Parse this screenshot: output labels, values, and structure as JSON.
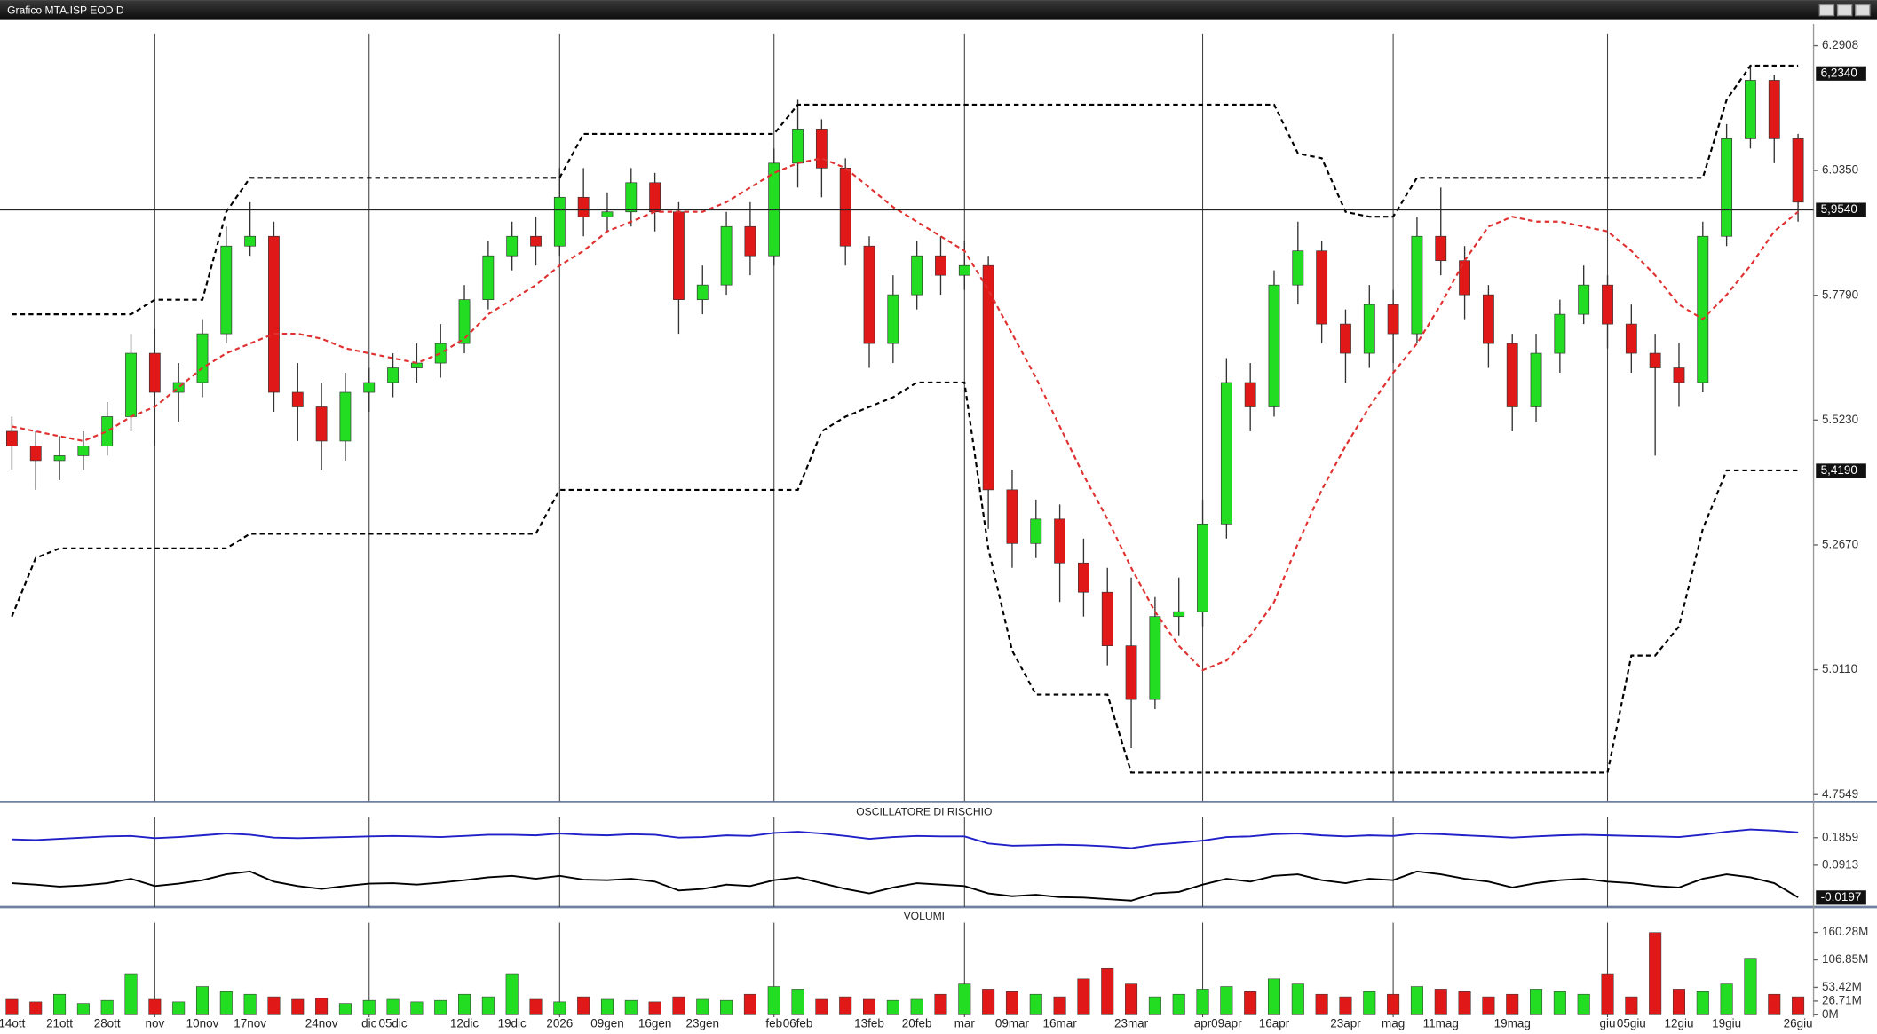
{
  "window": {
    "title": "Grafico MTA.ISP EOD D"
  },
  "chart_data": [
    {
      "type": "candlestick",
      "categories": [
        "14ott",
        null,
        "21ott",
        null,
        "28ott",
        null,
        "nov",
        null,
        "10nov",
        null,
        "17nov",
        null,
        null,
        "24nov",
        null,
        "dic",
        "05dic",
        null,
        null,
        "12dic",
        null,
        "19dic",
        null,
        "2026",
        null,
        "09gen",
        null,
        "16gen",
        null,
        "23gen",
        null,
        null,
        "feb",
        "06feb",
        null,
        null,
        "13feb",
        null,
        "20feb",
        null,
        "mar",
        null,
        "09mar",
        null,
        "16mar",
        null,
        null,
        "23mar",
        null,
        null,
        "apr",
        "09apr",
        null,
        "16apr",
        null,
        null,
        "23apr",
        null,
        "mag",
        null,
        "11mag",
        null,
        null,
        "19mag",
        null,
        null,
        null,
        "giu",
        "05giu",
        null,
        "12giu",
        null,
        "19giu",
        null,
        null,
        "26giu"
      ],
      "open": [
        5.5,
        5.47,
        5.44,
        5.45,
        5.47,
        5.53,
        5.66,
        5.58,
        5.6,
        5.7,
        5.88,
        5.9,
        5.58,
        5.55,
        5.48,
        5.58,
        5.6,
        5.63,
        5.64,
        5.68,
        5.77,
        5.86,
        5.9,
        5.88,
        5.98,
        5.94,
        5.95,
        6.01,
        5.95,
        5.77,
        5.8,
        5.92,
        5.86,
        6.05,
        6.12,
        6.04,
        5.88,
        5.68,
        5.78,
        5.86,
        5.82,
        5.84,
        5.38,
        5.27,
        5.32,
        5.23,
        5.17,
        5.06,
        4.95,
        5.12,
        5.13,
        5.31,
        5.6,
        5.55,
        5.8,
        5.87,
        5.72,
        5.66,
        5.76,
        5.7,
        5.9,
        5.85,
        5.78,
        5.68,
        5.55,
        5.66,
        5.74,
        5.8,
        5.72,
        5.66,
        5.63,
        5.6,
        5.9,
        6.1,
        6.22,
        6.1
      ],
      "high": [
        5.53,
        5.5,
        5.49,
        5.5,
        5.56,
        5.7,
        5.71,
        5.64,
        5.73,
        5.92,
        5.97,
        5.93,
        5.64,
        5.6,
        5.62,
        5.63,
        5.66,
        5.68,
        5.72,
        5.8,
        5.89,
        5.93,
        5.94,
        6.04,
        6.04,
        5.99,
        6.04,
        6.03,
        5.97,
        5.84,
        5.95,
        5.97,
        6.08,
        6.18,
        6.14,
        6.06,
        5.9,
        5.82,
        5.89,
        5.9,
        5.89,
        5.86,
        5.42,
        5.36,
        5.35,
        5.28,
        5.22,
        5.2,
        5.16,
        5.2,
        5.36,
        5.65,
        5.64,
        5.83,
        5.93,
        5.89,
        5.75,
        5.8,
        5.79,
        5.94,
        6.0,
        5.88,
        5.8,
        5.7,
        5.7,
        5.77,
        5.84,
        5.82,
        5.76,
        5.7,
        5.68,
        5.93,
        6.13,
        6.25,
        6.23,
        6.11
      ],
      "low": [
        5.42,
        5.38,
        5.4,
        5.42,
        5.45,
        5.5,
        5.47,
        5.52,
        5.57,
        5.68,
        5.86,
        5.54,
        5.48,
        5.42,
        5.44,
        5.54,
        5.57,
        5.6,
        5.61,
        5.66,
        5.75,
        5.83,
        5.84,
        5.86,
        5.9,
        5.91,
        5.92,
        5.91,
        5.7,
        5.74,
        5.78,
        5.82,
        5.84,
        6.0,
        5.98,
        5.84,
        5.63,
        5.64,
        5.75,
        5.78,
        5.79,
        5.3,
        5.22,
        5.24,
        5.15,
        5.12,
        5.02,
        4.85,
        4.93,
        5.08,
        5.1,
        5.28,
        5.5,
        5.53,
        5.76,
        5.68,
        5.6,
        5.63,
        5.64,
        5.68,
        5.82,
        5.73,
        5.63,
        5.5,
        5.52,
        5.62,
        5.72,
        5.67,
        5.62,
        5.45,
        5.55,
        5.58,
        5.88,
        6.08,
        6.05,
        5.93
      ],
      "close": [
        5.47,
        5.44,
        5.45,
        5.47,
        5.53,
        5.66,
        5.58,
        5.6,
        5.7,
        5.88,
        5.9,
        5.58,
        5.55,
        5.48,
        5.58,
        5.6,
        5.63,
        5.64,
        5.68,
        5.77,
        5.86,
        5.9,
        5.88,
        5.98,
        5.94,
        5.95,
        6.01,
        5.95,
        5.77,
        5.8,
        5.92,
        5.86,
        6.05,
        6.12,
        6.04,
        5.88,
        5.68,
        5.78,
        5.86,
        5.82,
        5.84,
        5.38,
        5.27,
        5.32,
        5.23,
        5.17,
        5.06,
        4.95,
        5.12,
        5.13,
        5.31,
        5.6,
        5.55,
        5.8,
        5.87,
        5.72,
        5.66,
        5.76,
        5.7,
        5.9,
        5.85,
        5.78,
        5.68,
        5.55,
        5.66,
        5.74,
        5.8,
        5.72,
        5.66,
        5.63,
        5.6,
        5.9,
        6.1,
        6.22,
        6.1,
        5.97
      ],
      "up_color": "#22dd22",
      "down_color": "#e01818",
      "overlays": [
        {
          "color": "#e03030",
          "dash": true,
          "values": [
            5.51,
            5.5,
            5.49,
            5.48,
            5.5,
            5.53,
            5.55,
            5.59,
            5.63,
            5.66,
            5.68,
            5.7,
            5.7,
            5.69,
            5.67,
            5.66,
            5.65,
            5.64,
            5.66,
            5.69,
            5.74,
            5.77,
            5.8,
            5.84,
            5.87,
            5.91,
            5.93,
            5.95,
            5.95,
            5.95,
            5.97,
            6.0,
            6.03,
            6.05,
            6.06,
            6.04,
            6.0,
            5.96,
            5.93,
            5.9,
            5.87,
            5.79,
            5.7,
            5.61,
            5.51,
            5.41,
            5.32,
            5.22,
            5.13,
            5.06,
            5.01,
            5.03,
            5.08,
            5.15,
            5.27,
            5.38,
            5.47,
            5.55,
            5.62,
            5.68,
            5.76,
            5.85,
            5.92,
            5.94,
            5.93,
            5.93,
            5.92,
            5.91,
            5.87,
            5.82,
            5.76,
            5.73,
            5.78,
            5.84,
            5.91,
            5.95
          ]
        },
        {
          "color": "#000000",
          "dash": true,
          "values": [
            5.74,
            5.74,
            5.74,
            5.74,
            5.74,
            5.74,
            5.77,
            5.77,
            5.77,
            5.95,
            6.02,
            6.02,
            6.02,
            6.02,
            6.02,
            6.02,
            6.02,
            6.02,
            6.02,
            6.02,
            6.02,
            6.02,
            6.02,
            6.02,
            6.11,
            6.11,
            6.11,
            6.11,
            6.11,
            6.11,
            6.11,
            6.11,
            6.11,
            6.17,
            6.17,
            6.17,
            6.17,
            6.17,
            6.17,
            6.17,
            6.17,
            6.17,
            6.17,
            6.17,
            6.17,
            6.17,
            6.17,
            6.17,
            6.17,
            6.17,
            6.17,
            6.17,
            6.17,
            6.17,
            6.07,
            6.06,
            5.95,
            5.94,
            5.94,
            6.02,
            6.02,
            6.02,
            6.02,
            6.02,
            6.02,
            6.02,
            6.02,
            6.02,
            6.02,
            6.02,
            6.02,
            6.02,
            6.18,
            6.25,
            6.25,
            6.25
          ]
        },
        {
          "color": "#000000",
          "dash": true,
          "values": [
            5.12,
            5.24,
            5.26,
            5.26,
            5.26,
            5.26,
            5.26,
            5.26,
            5.26,
            5.26,
            5.29,
            5.29,
            5.29,
            5.29,
            5.29,
            5.29,
            5.29,
            5.29,
            5.29,
            5.29,
            5.29,
            5.29,
            5.29,
            5.38,
            5.38,
            5.38,
            5.38,
            5.38,
            5.38,
            5.38,
            5.38,
            5.38,
            5.38,
            5.38,
            5.5,
            5.53,
            5.55,
            5.57,
            5.6,
            5.6,
            5.6,
            5.26,
            5.05,
            4.96,
            4.96,
            4.96,
            4.96,
            4.8,
            4.8,
            4.8,
            4.8,
            4.8,
            4.8,
            4.8,
            4.8,
            4.8,
            4.8,
            4.8,
            4.8,
            4.8,
            4.8,
            4.8,
            4.8,
            4.8,
            4.8,
            4.8,
            4.8,
            4.8,
            5.04,
            5.04,
            5.1,
            5.3,
            5.42,
            5.42,
            5.42,
            5.42
          ]
        }
      ],
      "ylim": [
        4.745,
        6.306
      ],
      "yticks": [
        6.2908,
        {
          "value": 6.035,
          "label": "6.0350"
        },
        {
          "value": 5.779,
          "label": "5.7790"
        },
        {
          "value": 5.523,
          "label": "5.5230"
        },
        {
          "value": 5.267,
          "label": "5.2670"
        },
        {
          "value": 5.011,
          "label": "5.0110"
        },
        4.7549
      ],
      "tags": [
        {
          "value": 6.234,
          "label": "6,2340"
        },
        {
          "value": 5.954,
          "label": "5,9540",
          "crosshair": true
        },
        {
          "value": 5.419,
          "label": "5,4190"
        }
      ]
    },
    {
      "type": "line",
      "title": "OSCILLATORE DI RISCHIO",
      "series": [
        {
          "color": "#2020c8",
          "values": [
            0.18,
            0.178,
            0.182,
            0.186,
            0.19,
            0.192,
            0.184,
            0.188,
            0.194,
            0.2,
            0.196,
            0.186,
            0.184,
            0.186,
            0.188,
            0.19,
            0.192,
            0.19,
            0.188,
            0.192,
            0.196,
            0.196,
            0.194,
            0.2,
            0.196,
            0.194,
            0.198,
            0.196,
            0.186,
            0.188,
            0.194,
            0.192,
            0.202,
            0.206,
            0.2,
            0.192,
            0.182,
            0.188,
            0.192,
            0.19,
            0.19,
            0.166,
            0.158,
            0.16,
            0.162,
            0.16,
            0.156,
            0.15,
            0.162,
            0.168,
            0.176,
            0.188,
            0.19,
            0.198,
            0.2,
            0.194,
            0.19,
            0.194,
            0.192,
            0.2,
            0.198,
            0.194,
            0.19,
            0.186,
            0.19,
            0.194,
            0.196,
            0.194,
            0.192,
            0.19,
            0.188,
            0.196,
            0.206,
            0.214,
            0.21,
            0.204
          ]
        },
        {
          "color": "#000000",
          "values": [
            0.03,
            0.025,
            0.018,
            0.022,
            0.03,
            0.045,
            0.02,
            0.028,
            0.04,
            0.06,
            0.07,
            0.035,
            0.02,
            0.01,
            0.02,
            0.028,
            0.03,
            0.025,
            0.032,
            0.04,
            0.05,
            0.055,
            0.045,
            0.055,
            0.042,
            0.04,
            0.045,
            0.035,
            0.005,
            0.01,
            0.025,
            0.02,
            0.04,
            0.05,
            0.03,
            0.01,
            -0.005,
            0.015,
            0.03,
            0.025,
            0.02,
            -0.005,
            -0.015,
            -0.01,
            -0.018,
            -0.02,
            -0.025,
            -0.03,
            -0.005,
            0.0,
            0.025,
            0.045,
            0.035,
            0.055,
            0.06,
            0.04,
            0.03,
            0.045,
            0.04,
            0.07,
            0.06,
            0.045,
            0.035,
            0.015,
            0.03,
            0.04,
            0.045,
            0.035,
            0.03,
            0.02,
            0.015,
            0.045,
            0.06,
            0.05,
            0.03,
            -0.019
          ]
        }
      ],
      "ylim": [
        -0.044,
        0.239
      ],
      "yticks": [
        0.1859,
        0.0913
      ],
      "tags": [
        {
          "value": -0.0197,
          "label": "-0.0197"
        }
      ]
    },
    {
      "type": "bar",
      "title": "VOLUMI",
      "values": [
        30,
        25,
        40,
        22,
        28,
        80,
        30,
        25,
        55,
        45,
        40,
        35,
        30,
        32,
        22,
        28,
        30,
        25,
        28,
        40,
        35,
        80,
        30,
        25,
        35,
        30,
        28,
        25,
        35,
        30,
        28,
        40,
        55,
        50,
        30,
        35,
        30,
        28,
        30,
        40,
        60,
        50,
        45,
        40,
        35,
        70,
        90,
        60,
        35,
        40,
        50,
        55,
        45,
        70,
        60,
        40,
        35,
        45,
        40,
        55,
        50,
        45,
        35,
        40,
        50,
        45,
        40,
        80,
        35,
        160,
        50,
        45,
        60,
        110,
        40,
        35
      ],
      "ylim": [
        0,
        170
      ],
      "yticks": [
        {
          "value": 160.28,
          "label": "160.28M"
        },
        {
          "value": 106.85,
          "label": "106.85M"
        },
        {
          "value": 53.42,
          "label": "53.42M"
        },
        {
          "value": 26.71,
          "label": "26.71M"
        },
        {
          "value": 0,
          "label": "0M"
        }
      ]
    }
  ]
}
